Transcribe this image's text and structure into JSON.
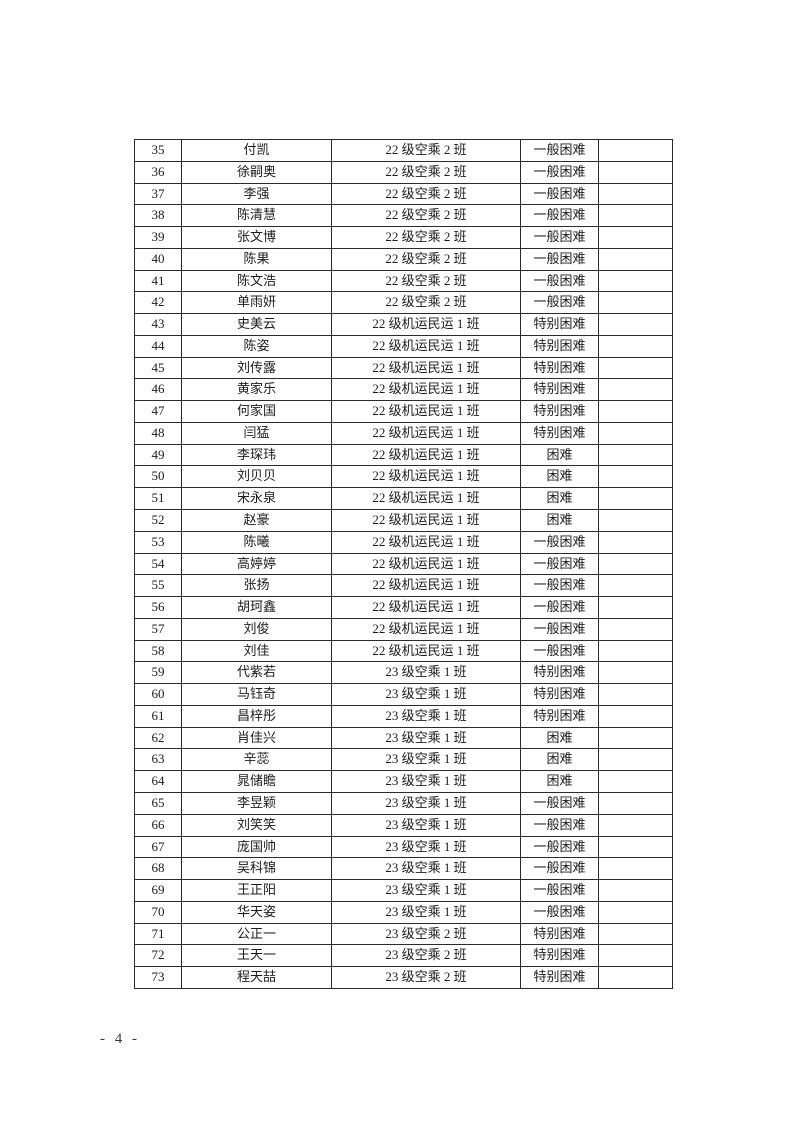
{
  "page": {
    "footer_page_number": "- 4 -"
  },
  "table": {
    "rows": [
      {
        "no": "35",
        "name": "付凯",
        "cls": "22 级空乘 2 班",
        "level": "一般困难",
        "note": ""
      },
      {
        "no": "36",
        "name": "徐嗣奥",
        "cls": "22 级空乘 2 班",
        "level": "一般困难",
        "note": ""
      },
      {
        "no": "37",
        "name": "李强",
        "cls": "22 级空乘 2 班",
        "level": "一般困难",
        "note": ""
      },
      {
        "no": "38",
        "name": "陈清慧",
        "cls": "22 级空乘 2 班",
        "level": "一般困难",
        "note": ""
      },
      {
        "no": "39",
        "name": "张文博",
        "cls": "22 级空乘 2 班",
        "level": "一般困难",
        "note": ""
      },
      {
        "no": "40",
        "name": "陈果",
        "cls": "22 级空乘 2 班",
        "level": "一般困难",
        "note": ""
      },
      {
        "no": "41",
        "name": "陈文浩",
        "cls": "22 级空乘 2 班",
        "level": "一般困难",
        "note": ""
      },
      {
        "no": "42",
        "name": "单雨妍",
        "cls": "22 级空乘 2 班",
        "level": "一般困难",
        "note": ""
      },
      {
        "no": "43",
        "name": "史美云",
        "cls": "22 级机运民运 1 班",
        "level": "特别困难",
        "note": ""
      },
      {
        "no": "44",
        "name": "陈姿",
        "cls": "22 级机运民运 1 班",
        "level": "特别困难",
        "note": ""
      },
      {
        "no": "45",
        "name": "刘传露",
        "cls": "22 级机运民运 1 班",
        "level": "特别困难",
        "note": ""
      },
      {
        "no": "46",
        "name": "黄家乐",
        "cls": "22 级机运民运 1 班",
        "level": "特别困难",
        "note": ""
      },
      {
        "no": "47",
        "name": "何家国",
        "cls": "22 级机运民运 1 班",
        "level": "特别困难",
        "note": ""
      },
      {
        "no": "48",
        "name": "闫猛",
        "cls": "22 级机运民运 1 班",
        "level": "特别困难",
        "note": ""
      },
      {
        "no": "49",
        "name": "李琛玮",
        "cls": "22 级机运民运 1 班",
        "level": "困难",
        "note": ""
      },
      {
        "no": "50",
        "name": "刘贝贝",
        "cls": "22 级机运民运 1 班",
        "level": "困难",
        "note": ""
      },
      {
        "no": "51",
        "name": "宋永泉",
        "cls": "22 级机运民运 1 班",
        "level": "困难",
        "note": ""
      },
      {
        "no": "52",
        "name": "赵豪",
        "cls": "22 级机运民运 1 班",
        "level": "困难",
        "note": ""
      },
      {
        "no": "53",
        "name": "陈曦",
        "cls": "22 级机运民运 1 班",
        "level": "一般困难",
        "note": ""
      },
      {
        "no": "54",
        "name": "高婷婷",
        "cls": "22 级机运民运 1 班",
        "level": "一般困难",
        "note": ""
      },
      {
        "no": "55",
        "name": "张扬",
        "cls": "22 级机运民运 1 班",
        "level": "一般困难",
        "note": ""
      },
      {
        "no": "56",
        "name": "胡珂鑫",
        "cls": "22 级机运民运 1 班",
        "level": "一般困难",
        "note": ""
      },
      {
        "no": "57",
        "name": "刘俊",
        "cls": "22 级机运民运 1 班",
        "level": "一般困难",
        "note": ""
      },
      {
        "no": "58",
        "name": "刘佳",
        "cls": "22 级机运民运 1 班",
        "level": "一般困难",
        "note": ""
      },
      {
        "no": "59",
        "name": "代紫若",
        "cls": "23 级空乘 1 班",
        "level": "特别困难",
        "note": ""
      },
      {
        "no": "60",
        "name": "马钰奇",
        "cls": "23 级空乘 1 班",
        "level": "特别困难",
        "note": ""
      },
      {
        "no": "61",
        "name": "昌梓彤",
        "cls": "23 级空乘 1 班",
        "level": "特别困难",
        "note": ""
      },
      {
        "no": "62",
        "name": "肖佳兴",
        "cls": "23 级空乘 1 班",
        "level": "困难",
        "note": ""
      },
      {
        "no": "63",
        "name": "辛蕊",
        "cls": "23 级空乘 1 班",
        "level": "困难",
        "note": ""
      },
      {
        "no": "64",
        "name": "晁储瞻",
        "cls": "23 级空乘 1 班",
        "level": "困难",
        "note": ""
      },
      {
        "no": "65",
        "name": "李昱颖",
        "cls": "23 级空乘 1 班",
        "level": "一般困难",
        "note": ""
      },
      {
        "no": "66",
        "name": "刘笑笑",
        "cls": "23 级空乘 1 班",
        "level": "一般困难",
        "note": ""
      },
      {
        "no": "67",
        "name": "庞国帅",
        "cls": "23 级空乘 1 班",
        "level": "一般困难",
        "note": ""
      },
      {
        "no": "68",
        "name": "吴科锦",
        "cls": "23 级空乘 1 班",
        "level": "一般困难",
        "note": ""
      },
      {
        "no": "69",
        "name": "王正阳",
        "cls": "23 级空乘 1 班",
        "level": "一般困难",
        "note": ""
      },
      {
        "no": "70",
        "name": "华天姿",
        "cls": "23 级空乘 1 班",
        "level": "一般困难",
        "note": ""
      },
      {
        "no": "71",
        "name": "公正一",
        "cls": "23 级空乘 2 班",
        "level": "特别困难",
        "note": ""
      },
      {
        "no": "72",
        "name": "王天一",
        "cls": "23 级空乘 2 班",
        "level": "特别困难",
        "note": ""
      },
      {
        "no": "73",
        "name": "程天喆",
        "cls": "23 级空乘 2 班",
        "level": "特别困难",
        "note": ""
      }
    ]
  }
}
